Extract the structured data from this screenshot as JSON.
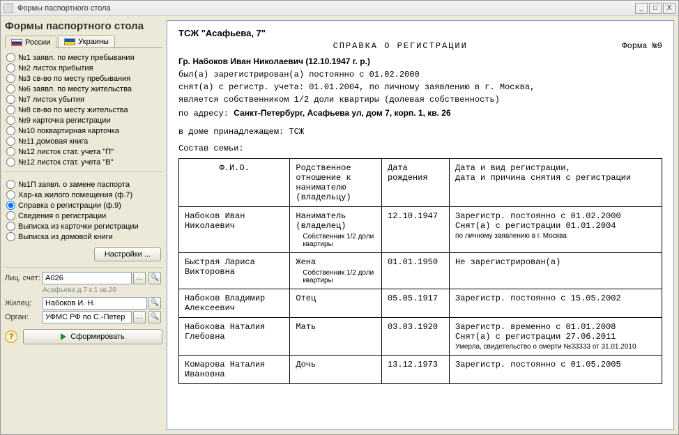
{
  "window": {
    "title": "Формы паспортного стола"
  },
  "sidebar": {
    "heading": "Формы паспортного стола",
    "tabs": {
      "ru": "России",
      "ua": "Украины"
    },
    "group1": [
      "№1  заявл. по месту пребывания",
      "№2 листок прибытия",
      "№3 св-во по месту пребывания",
      "№6  заявл. по месту жительства",
      "№7 листок убытия",
      "№8 св-во по месту жительства",
      "№9 карточка регистрации",
      "№10 поквартирная карточка",
      "№11 домовая книга",
      "№12 листок стат. учета \"П\"",
      "№12 листок стат. учета \"В\""
    ],
    "group2": [
      "№1П  заявл. о замене паспорта",
      "Хар-ка жилого помещения (ф.7)",
      "Справка о регистрации (ф.9)",
      "Сведения о регистрации",
      "Выписка из карточки регистрации",
      "Выписка из домовой книги"
    ],
    "selected_group2_index": 2,
    "settings_btn": "Настройки ...",
    "fields": {
      "account_label": "Лиц. счет:",
      "account_value": "А026",
      "account_sub": "Асафьева д.7 к.1 кв.26",
      "resident_label": "Жилец:",
      "resident_value": "Набоков И. Н.",
      "organ_label": "Орган:",
      "organ_value": "УФМС РФ по С.-Петер"
    },
    "generate_btn": "Сформировать"
  },
  "doc": {
    "org": "ТСЖ \"Асафьева, 7\"",
    "title": "СПРАВКА  О  РЕГИСТРАЦИИ",
    "form_no": "Форма №9",
    "citizen_prefix": "Гр.  ",
    "citizen": "Набоков Иван Николаевич (12.10.1947 г. р.)",
    "line1": "был(а) зарегистрирован(а) постоянно с 01.02.2000",
    "line2": "снят(а) с регистр. учета: 01.01.2004, по личному заявлению в г. Москва,",
    "line3": "является собственником 1/2 доли квартиры (долевая собственность)",
    "addr_label": "по адресу:  ",
    "addr": "Санкт-Петербург, Асафьева ул, дом 7, корп. 1, кв. 26",
    "house": "в доме принадлежащем:  ТСЖ",
    "family_label": "Состав семьи:",
    "cols": {
      "fio": "Ф.И.О.",
      "rel": "Родственное отношение к нанимателю (владельцу)",
      "dob": "Дата рождения",
      "reg": "Дата и вид регистрации,\nдата и причина снятия с регистрации"
    },
    "rows": [
      {
        "fio": "Набоков Иван Николаевич",
        "rel": "Наниматель (владелец)",
        "rel_note": "Собственник 1/2 доли квартиры",
        "dob": "12.10.1947",
        "reg1": "Зарегистр. постоянно с 01.02.2000",
        "reg2": "Снят(а) с регистрации  01.01.2004",
        "reg_note": "по личному заявлению в г. Москва"
      },
      {
        "fio": "Быстрая Лариса Викторовна",
        "rel": "Жена",
        "rel_note": "Собственник 1/2 доли квартиры",
        "dob": "01.01.1950",
        "reg1": "Не зарегистрирован(а)"
      },
      {
        "fio": "Набоков Владимир Алексеевич",
        "rel": "Отец",
        "dob": "05.05.1917",
        "reg1": "Зарегистр. постоянно с 15.05.2002"
      },
      {
        "fio": "Набокова Наталия Глебовна",
        "rel": "Мать",
        "dob": "03.03.1920",
        "reg1": "Зарегистр. временно с 01.01.2008",
        "reg2": "Снят(а) с регистрации  27.06.2011",
        "reg_note": "Умерла, свидетельство о смерти №33333 от 31.01.2010"
      },
      {
        "fio": "Комарова Наталия Ивановна",
        "rel": "Дочь",
        "dob": "13.12.1973",
        "reg1": "Зарегистр. постоянно с 01.05.2005"
      }
    ]
  }
}
